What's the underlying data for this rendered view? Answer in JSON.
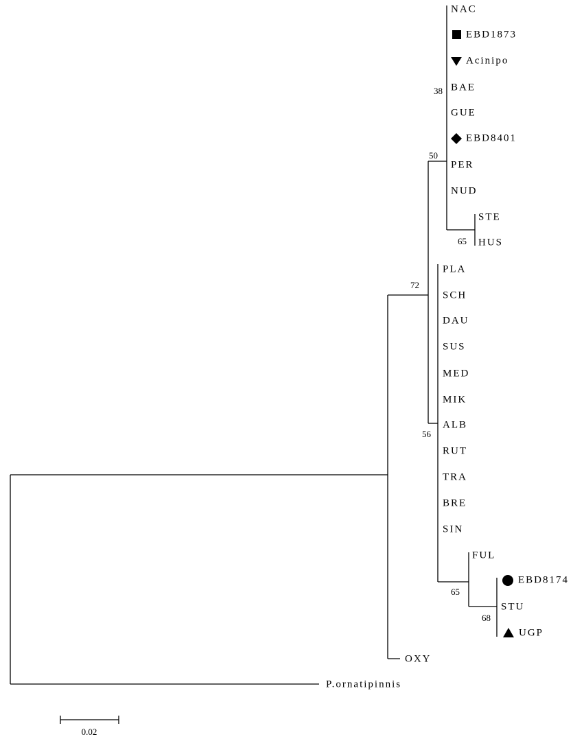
{
  "leaves": [
    "NAC",
    "EBD1873",
    "Acinipo",
    "BAE",
    "GUE",
    "EBD8401",
    "PER",
    "NUD",
    "STE",
    "HUS",
    "PLA",
    "SCH",
    "DAU",
    "SUS",
    "MED",
    "MIK",
    "ALB",
    "RUT",
    "TRA",
    "BRE",
    "SIN",
    "FUL",
    "EBD8174",
    "STU",
    "UGP",
    "OXY",
    "P.ornatipinnis"
  ],
  "bootstrap": [
    "38",
    "50",
    "65",
    "72",
    "56",
    "65",
    "68"
  ],
  "scale_bar": "0.02"
}
